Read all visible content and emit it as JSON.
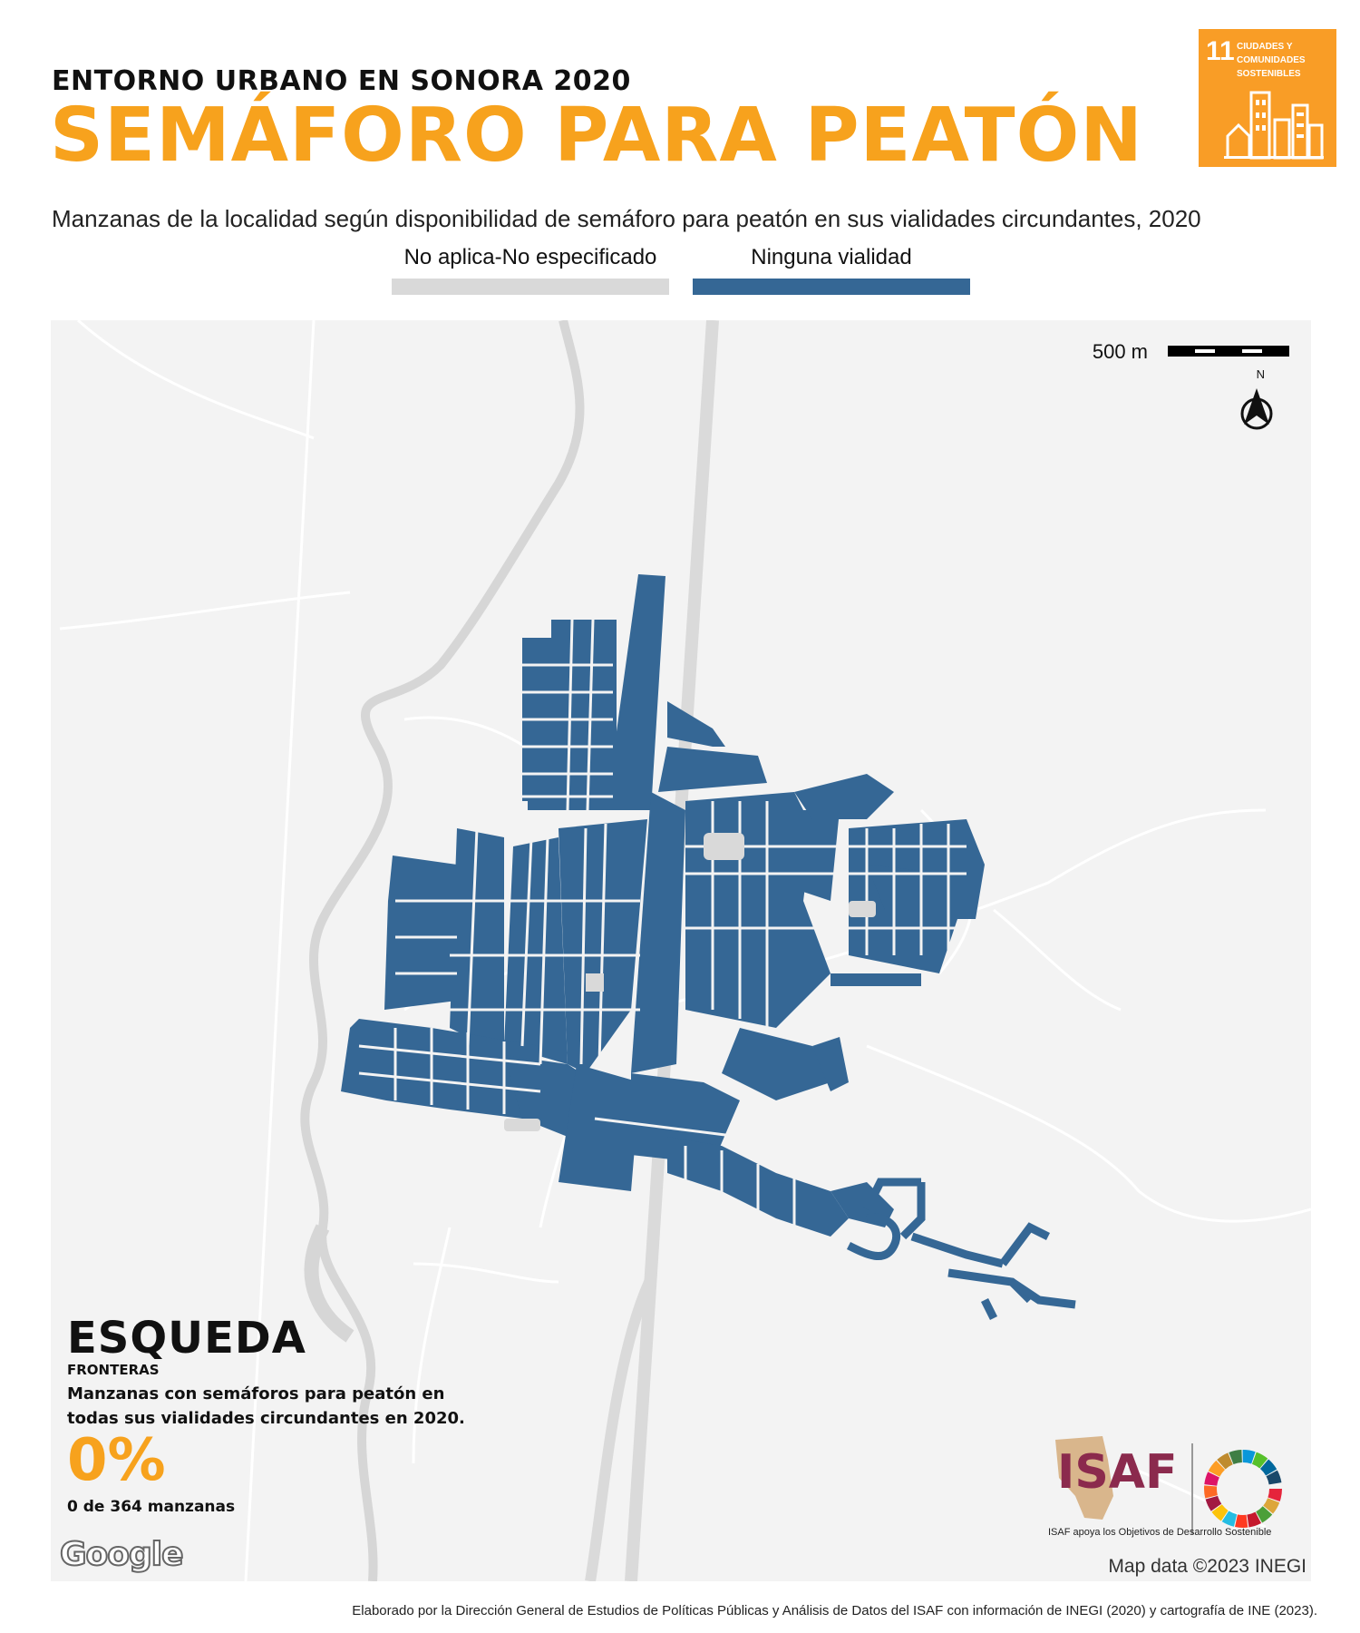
{
  "header": {
    "supertitle": "ENTORNO URBANO EN SONORA 2020",
    "title": "SEMÁFORO PARA PEATÓN",
    "subtitle": "Manzanas de la localidad según disponibilidad de semáforo para peatón en sus vialidades circundantes, 2020"
  },
  "legend": [
    {
      "label": "No aplica-No especificado",
      "color": "#d9d9d9"
    },
    {
      "label": "Ninguna vialidad",
      "color": "#356795"
    }
  ],
  "sdg": {
    "number": "11",
    "text": "CIUDADES Y COMUNIDADES SOSTENIBLES",
    "color": "#f99d26"
  },
  "map": {
    "scale_label": "500 m",
    "north_label": "N",
    "attribution": "Map data ©2023 INEGI",
    "google_logo": "Google",
    "background_color": "#f3f3f3",
    "block_color": "#356795"
  },
  "panel": {
    "place": "ESQUEDA",
    "region": "FRONTERAS",
    "description": "Manzanas con semáforos para peatón en todas sus vialidades circundantes en 2020.",
    "percent": "0%",
    "count": "0 de 364 manzanas"
  },
  "logos": {
    "isaf_word": "ISAF",
    "isaf_tagline": "ISAF apoya los Objetivos de Desarrollo Sostenible"
  },
  "footer": "Elaborado por la Dirección General de Estudios de Políticas Públicas y Análisis de Datos del ISAF con información de INEGI (2020) y cartografía de INE (2023)."
}
